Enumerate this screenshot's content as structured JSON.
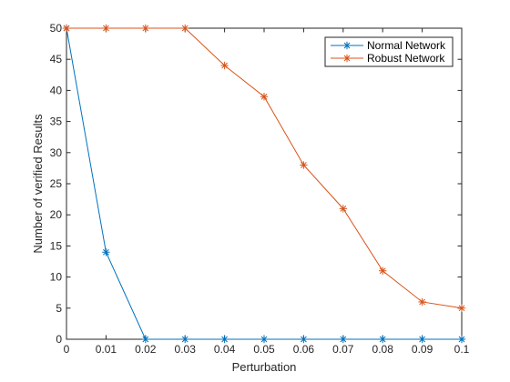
{
  "chart_data": {
    "type": "line",
    "xlabel": "Perturbation",
    "ylabel": "Number of verified Results",
    "xlim": [
      0,
      0.1
    ],
    "ylim": [
      0,
      50
    ],
    "x_ticks": [
      0,
      0.01,
      0.02,
      0.03,
      0.04,
      0.05,
      0.06,
      0.07,
      0.08,
      0.09,
      0.1
    ],
    "x_tick_labels": [
      "0",
      "0.01",
      "0.02",
      "0.03",
      "0.04",
      "0.05",
      "0.06",
      "0.07",
      "0.08",
      "0.09",
      "0.1"
    ],
    "y_ticks": [
      0,
      5,
      10,
      15,
      20,
      25,
      30,
      35,
      40,
      45,
      50
    ],
    "y_tick_labels": [
      "0",
      "5",
      "10",
      "15",
      "20",
      "25",
      "30",
      "35",
      "40",
      "45",
      "50"
    ],
    "grid": false,
    "legend_position": "top-right",
    "x": [
      0,
      0.01,
      0.02,
      0.03,
      0.04,
      0.05,
      0.06,
      0.07,
      0.08,
      0.09,
      0.1
    ],
    "series": [
      {
        "name": "Normal Network",
        "color": "#0072BD",
        "marker": "asterisk",
        "values": [
          50,
          14,
          0,
          0,
          0,
          0,
          0,
          0,
          0,
          0,
          0
        ]
      },
      {
        "name": "Robust Network",
        "color": "#D95319",
        "marker": "asterisk",
        "values": [
          50,
          50,
          50,
          50,
          44,
          39,
          28,
          21,
          11,
          6,
          5
        ]
      }
    ]
  }
}
